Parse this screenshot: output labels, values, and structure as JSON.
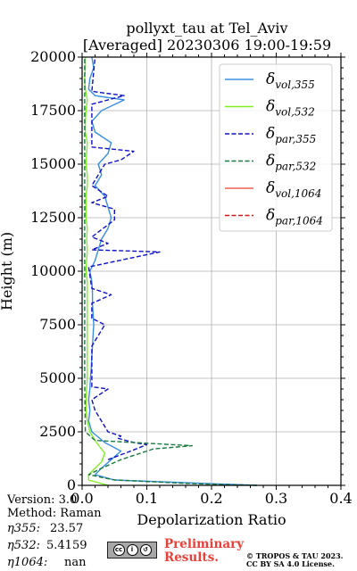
{
  "title": {
    "line1": "pollyxt_tau at Tel_Aviv",
    "line2": "[Averaged] 20230306 19:00-19:59"
  },
  "info": {
    "version": "Version: 3.0",
    "method": "Method: Raman",
    "eta355_label": "η355:",
    "eta355_value": "23.57",
    "eta532_label": "η532:",
    "eta532_value": "5.4159",
    "eta1064_label": "η1064:",
    "eta1064_value": "nan"
  },
  "footer": {
    "prelim_line1": "Preliminary",
    "prelim_line2": "Results.",
    "copyright_line1": "© TROPOS & TAU 2023.",
    "copyright_line2": "CC BY SA 4.0 License."
  },
  "colors": {
    "vol355": "#3a8fe0",
    "vol532": "#80f020",
    "par355": "#1010c8",
    "par532": "#1a7a40",
    "vol1064": "#f06050",
    "par1064": "#d01818"
  },
  "chart_data": {
    "type": "line",
    "xlabel": "Depolarization Ratio",
    "ylabel": "Height (m)",
    "xlim": [
      0,
      0.4
    ],
    "ylim": [
      0,
      20000
    ],
    "xticks": [
      0.0,
      0.1,
      0.2,
      0.3,
      0.4
    ],
    "xtick_labels": [
      "0.0",
      "0.1",
      "0.2",
      "0.3",
      "0.4"
    ],
    "yticks": [
      0,
      2500,
      5000,
      7500,
      10000,
      12500,
      15000,
      17500,
      20000
    ],
    "ytick_labels": [
      "0",
      "2500",
      "5000",
      "7500",
      "10000",
      "12500",
      "15000",
      "17500",
      "20000"
    ],
    "grid": true,
    "legend_position": "upper right",
    "series": [
      {
        "name": "δvol,355",
        "legend_base": "δ",
        "legend_sub": "vol,355",
        "color": "#3a8fe0",
        "dash": false,
        "points": [
          [
            0.27,
            0
          ],
          [
            0.18,
            100
          ],
          [
            0.05,
            250
          ],
          [
            0.02,
            500
          ],
          [
            0.03,
            800
          ],
          [
            0.045,
            1200
          ],
          [
            0.06,
            1600
          ],
          [
            0.035,
            2000
          ],
          [
            0.015,
            2500
          ],
          [
            0.01,
            3000
          ],
          [
            0.012,
            3500
          ],
          [
            0.01,
            4000
          ],
          [
            0.012,
            4500
          ],
          [
            0.013,
            5000
          ],
          [
            0.014,
            5500
          ],
          [
            0.015,
            6000
          ],
          [
            0.016,
            6500
          ],
          [
            0.017,
            7000
          ],
          [
            0.018,
            7500
          ],
          [
            0.017,
            8000
          ],
          [
            0.016,
            8500
          ],
          [
            0.016,
            9000
          ],
          [
            0.015,
            9500
          ],
          [
            0.012,
            10000
          ],
          [
            0.02,
            10500
          ],
          [
            0.025,
            11000
          ],
          [
            0.03,
            11500
          ],
          [
            0.04,
            12000
          ],
          [
            0.045,
            12500
          ],
          [
            0.04,
            13000
          ],
          [
            0.035,
            13500
          ],
          [
            0.02,
            14000
          ],
          [
            0.03,
            14500
          ],
          [
            0.025,
            15000
          ],
          [
            0.04,
            15500
          ],
          [
            0.045,
            16000
          ],
          [
            0.02,
            16500
          ],
          [
            0.015,
            17000
          ],
          [
            0.03,
            17500
          ],
          [
            0.065,
            18000
          ],
          [
            0.02,
            18200
          ],
          [
            0.01,
            18500
          ],
          [
            0.012,
            19000
          ],
          [
            0.018,
            19500
          ],
          [
            0.015,
            20000
          ]
        ]
      },
      {
        "name": "δvol,532",
        "legend_base": "δ",
        "legend_sub": "vol,532",
        "color": "#80f020",
        "dash": false,
        "points": [
          [
            0.04,
            0
          ],
          [
            0.01,
            250
          ],
          [
            0.01,
            500
          ],
          [
            0.02,
            800
          ],
          [
            0.03,
            1100
          ],
          [
            0.035,
            1500
          ],
          [
            0.022,
            2000
          ],
          [
            0.012,
            2500
          ],
          [
            0.008,
            3000
          ],
          [
            0.006,
            3500
          ],
          [
            0.006,
            4000
          ],
          [
            0.007,
            4500
          ],
          [
            0.008,
            5000
          ],
          [
            0.008,
            5500
          ],
          [
            0.008,
            6000
          ],
          [
            0.008,
            6500
          ],
          [
            0.008,
            7000
          ],
          [
            0.008,
            7500
          ],
          [
            0.008,
            8000
          ],
          [
            0.008,
            8500
          ],
          [
            0.008,
            9000
          ],
          [
            0.008,
            9500
          ],
          [
            0.006,
            10000
          ],
          [
            0.007,
            10500
          ],
          [
            0.008,
            11000
          ],
          [
            0.007,
            11500
          ],
          [
            0.008,
            12000
          ],
          [
            0.006,
            12500
          ],
          [
            0.006,
            13000
          ],
          [
            0.006,
            13500
          ],
          [
            0.008,
            14000
          ],
          [
            0.008,
            14500
          ],
          [
            0.006,
            15000
          ],
          [
            0.007,
            15500
          ],
          [
            0.008,
            16000
          ],
          [
            0.005,
            16500
          ],
          [
            0.005,
            17000
          ],
          [
            0.006,
            17500
          ],
          [
            0.008,
            18000
          ],
          [
            0.005,
            18500
          ],
          [
            0.004,
            19000
          ],
          [
            0.005,
            19500
          ],
          [
            0.005,
            20000
          ]
        ]
      },
      {
        "name": "δpar,355",
        "legend_base": "δ",
        "legend_sub": "par,355",
        "color": "#1010c8",
        "dash": true,
        "points": [
          [
            0.04,
            1200
          ],
          [
            0.075,
            1600
          ],
          [
            0.1,
            1900
          ],
          [
            0.08,
            2000
          ],
          [
            0.055,
            2200
          ],
          [
            0.06,
            2300
          ],
          [
            0.04,
            2500
          ],
          [
            0.03,
            3000
          ],
          [
            0.02,
            3500
          ],
          [
            0.015,
            4000
          ],
          [
            0.04,
            4500
          ],
          [
            0.015,
            4600
          ],
          [
            0.015,
            6500
          ],
          [
            0.035,
            7500
          ],
          [
            0.015,
            7800
          ],
          [
            0.015,
            8500
          ],
          [
            0.045,
            8900
          ],
          [
            0.015,
            9200
          ],
          [
            0.01,
            10200
          ],
          [
            0.12,
            10900
          ],
          [
            0.015,
            11000
          ],
          [
            0.04,
            11300
          ],
          [
            0.015,
            11600
          ],
          [
            0.05,
            12400
          ],
          [
            0.05,
            12900
          ],
          [
            0.015,
            13200
          ],
          [
            0.04,
            13500
          ],
          [
            0.015,
            14000
          ],
          [
            0.035,
            15000
          ],
          [
            0.06,
            15200
          ],
          [
            0.08,
            15600
          ],
          [
            0.015,
            15800
          ],
          [
            0.015,
            17800
          ],
          [
            0.065,
            18200
          ],
          [
            0.015,
            18400
          ],
          [
            0.02,
            20000
          ]
        ]
      },
      {
        "name": "δpar,532",
        "legend_base": "δ",
        "legend_sub": "par,532",
        "color": "#1a7a40",
        "dash": true,
        "points": [
          [
            0.27,
            0
          ],
          [
            0.17,
            80
          ],
          [
            0.05,
            250
          ],
          [
            0.01,
            500
          ],
          [
            0.03,
            800
          ],
          [
            0.06,
            1200
          ],
          [
            0.11,
            1700
          ],
          [
            0.17,
            1850
          ],
          [
            0.02,
            2100
          ],
          [
            0.005,
            2500
          ],
          [
            0.004,
            5000
          ],
          [
            0.004,
            10000
          ],
          [
            0.004,
            15000
          ],
          [
            0.004,
            20000
          ]
        ]
      },
      {
        "name": "δvol,1064",
        "legend_base": "δ",
        "legend_sub": "vol,1064",
        "color": "#f06050",
        "dash": false,
        "points": []
      },
      {
        "name": "δpar,1064",
        "legend_base": "δ",
        "legend_sub": "par,1064",
        "color": "#d01818",
        "dash": true,
        "points": []
      }
    ]
  }
}
